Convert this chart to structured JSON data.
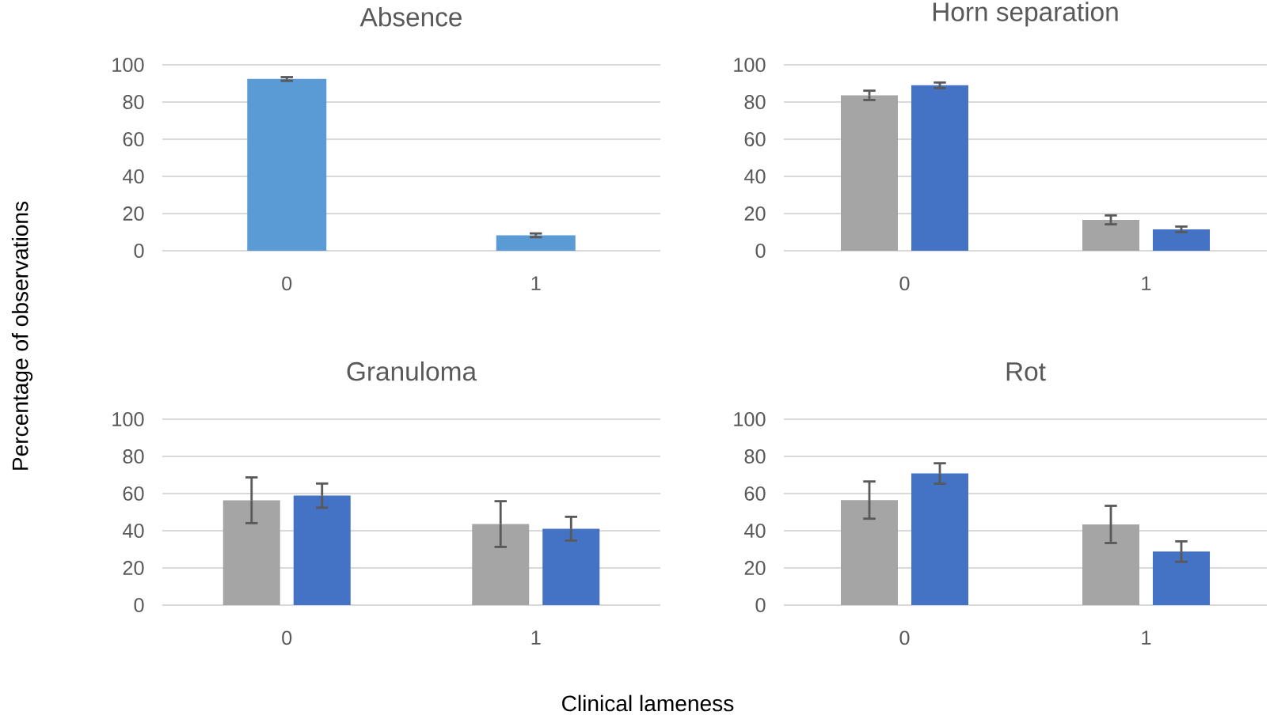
{
  "chart_data": [
    {
      "type": "bar",
      "title": "Absence",
      "ylabel": "Percentage of observations",
      "categories": [
        "0",
        "1"
      ],
      "series": [
        {
          "color": "#5b9bd5",
          "values": [
            92.4,
            8.3
          ],
          "errors": [
            1,
            1
          ]
        }
      ],
      "ylim": [
        0,
        100
      ],
      "yticks": [
        0,
        20,
        40,
        60,
        80,
        100
      ],
      "grid": "y"
    },
    {
      "type": "bar",
      "title": "Horn separation",
      "categories": [
        "0",
        "1"
      ],
      "series": [
        {
          "color": "#a5a5a5",
          "values": [
            83.6,
            16.6
          ],
          "errors": [
            2.5,
            2.4
          ]
        },
        {
          "color": "#4472c4",
          "values": [
            89,
            11.5
          ],
          "errors": [
            1.5,
            1.5
          ]
        }
      ],
      "ylim": [
        0,
        100
      ],
      "yticks": [
        0,
        20,
        40,
        60,
        80,
        100
      ],
      "grid": "y"
    },
    {
      "type": "bar",
      "title": "Granuloma",
      "xlabel": "Clinical lameness",
      "categories": [
        "0",
        "1"
      ],
      "series": [
        {
          "color": "#a5a5a5",
          "values": [
            56.4,
            43.6
          ],
          "errors": [
            12.3,
            12.3
          ]
        },
        {
          "color": "#4472c4",
          "values": [
            58.9,
            41.1
          ],
          "errors": [
            6.5,
            6.4
          ]
        }
      ],
      "ylim": [
        0,
        100
      ],
      "yticks": [
        0,
        20,
        40,
        60,
        80,
        100
      ],
      "grid": "y"
    },
    {
      "type": "bar",
      "title": "Rot",
      "categories": [
        "0",
        "1"
      ],
      "series": [
        {
          "color": "#a5a5a5",
          "values": [
            56.5,
            43.4
          ],
          "errors": [
            10,
            10
          ]
        },
        {
          "color": "#4472c4",
          "values": [
            70.8,
            28.8
          ],
          "errors": [
            5.5,
            5.5
          ]
        }
      ],
      "ylim": [
        0,
        100
      ],
      "yticks": [
        0,
        20,
        40,
        60,
        80,
        100
      ],
      "grid": "y"
    }
  ]
}
